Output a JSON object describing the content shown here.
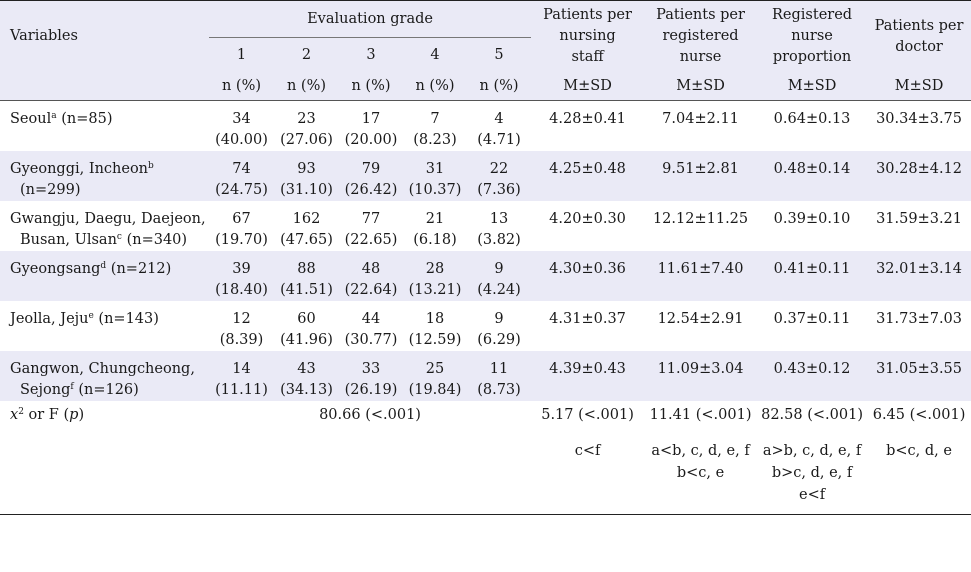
{
  "header": {
    "variables": "Variables",
    "evaluation_grade": "Evaluation grade",
    "grades": [
      "1",
      "2",
      "3",
      "4",
      "5"
    ],
    "n_pct": "n (%)",
    "col_nursing_staff": [
      "Patients per",
      "nursing",
      "staff"
    ],
    "col_registered_nurse": [
      "Patients per",
      "registered",
      "nurse"
    ],
    "col_rn_proportion": [
      "Registered",
      "nurse",
      "proportion"
    ],
    "col_doctor": [
      "Patients per",
      "doctor"
    ],
    "msd": "M±SD"
  },
  "rows": [
    {
      "label_line1": "Seoul",
      "label_sup": "a",
      "label_tail1": " (n=85)",
      "label_line2": "",
      "grades": [
        [
          "34",
          "(40.00)"
        ],
        [
          "23",
          "(27.06)"
        ],
        [
          "17",
          "(20.00)"
        ],
        [
          "7",
          "(8.23)"
        ],
        [
          "4",
          "(4.71)"
        ]
      ],
      "nursing_staff": "4.28±0.41",
      "registered_nurse": "7.04±2.11",
      "rn_proportion": "0.64±0.13",
      "doctor": "30.34±3.75"
    },
    {
      "label_line1": "Gyeonggi, Incheon",
      "label_sup": "b",
      "label_tail1": "",
      "label_line2": "(n=299)",
      "grades": [
        [
          "74",
          "(24.75)"
        ],
        [
          "93",
          "(31.10)"
        ],
        [
          "79",
          "(26.42)"
        ],
        [
          "31",
          "(10.37)"
        ],
        [
          "22",
          "(7.36)"
        ]
      ],
      "nursing_staff": "4.25±0.48",
      "registered_nurse": "9.51±2.81",
      "rn_proportion": "0.48±0.14",
      "doctor": "30.28±4.12"
    },
    {
      "label_line1": "Gwangju, Daegu, Daejeon,",
      "label_sup": "",
      "label_tail1": "",
      "label_line2": "Busan, Ulsan",
      "label_sup2": "c",
      "label_tail2": " (n=340)",
      "grades": [
        [
          "67",
          "(19.70)"
        ],
        [
          "162",
          "(47.65)"
        ],
        [
          "77",
          "(22.65)"
        ],
        [
          "21",
          "(6.18)"
        ],
        [
          "13",
          "(3.82)"
        ]
      ],
      "nursing_staff": "4.20±0.30",
      "registered_nurse": "12.12±11.25",
      "rn_proportion": "0.39±0.10",
      "doctor": "31.59±3.21"
    },
    {
      "label_line1": "Gyeongsang",
      "label_sup": "d",
      "label_tail1": " (n=212)",
      "label_line2": "",
      "grades": [
        [
          "39",
          "(18.40)"
        ],
        [
          "88",
          "(41.51)"
        ],
        [
          "48",
          "(22.64)"
        ],
        [
          "28",
          "(13.21)"
        ],
        [
          "9",
          "(4.24)"
        ]
      ],
      "nursing_staff": "4.30±0.36",
      "registered_nurse": "11.61±7.40",
      "rn_proportion": "0.41±0.11",
      "doctor": "32.01±3.14"
    },
    {
      "label_line1": "Jeolla, Jeju",
      "label_sup": "e",
      "label_tail1": " (n=143)",
      "label_line2": "",
      "grades": [
        [
          "12",
          "(8.39)"
        ],
        [
          "60",
          "(41.96)"
        ],
        [
          "44",
          "(30.77)"
        ],
        [
          "18",
          "(12.59)"
        ],
        [
          "9",
          "(6.29)"
        ]
      ],
      "nursing_staff": "4.31±0.37",
      "registered_nurse": "12.54±2.91",
      "rn_proportion": "0.37±0.11",
      "doctor": "31.73±7.03"
    },
    {
      "label_line1": "Gangwon, Chungcheong,",
      "label_sup": "",
      "label_tail1": "",
      "label_line2": "Sejong",
      "label_sup2": "f",
      "label_tail2": " (n=126)",
      "grades": [
        [
          "14",
          "(11.11)"
        ],
        [
          "43",
          "(34.13)"
        ],
        [
          "33",
          "(26.19)"
        ],
        [
          "25",
          "(19.84)"
        ],
        [
          "11",
          "(8.73)"
        ]
      ],
      "nursing_staff": "4.39±0.43",
      "registered_nurse": "11.09±3.04",
      "rn_proportion": "0.43±0.12",
      "doctor": "31.05±3.55"
    }
  ],
  "stat_row": {
    "label_x": "x",
    "label_sup": "2",
    "label_mid": " or F (",
    "label_p": "p",
    "label_end": ")",
    "grade_stat": "80.66 (<.001)",
    "nursing_staff": "5.17 (<.001)",
    "registered_nurse": "11.41 (<.001)",
    "rn_proportion": "82.58 (<.001)",
    "doctor": "6.45 (<.001)"
  },
  "posthoc_row": {
    "nursing_staff": [
      "c<f"
    ],
    "registered_nurse": [
      "a<b, c, d, e, f",
      "b<c, e"
    ],
    "rn_proportion": [
      "a>b, c, d, e, f",
      "b>c, d, e, f",
      "e<f"
    ],
    "doctor": [
      "b<c, d, e"
    ]
  }
}
